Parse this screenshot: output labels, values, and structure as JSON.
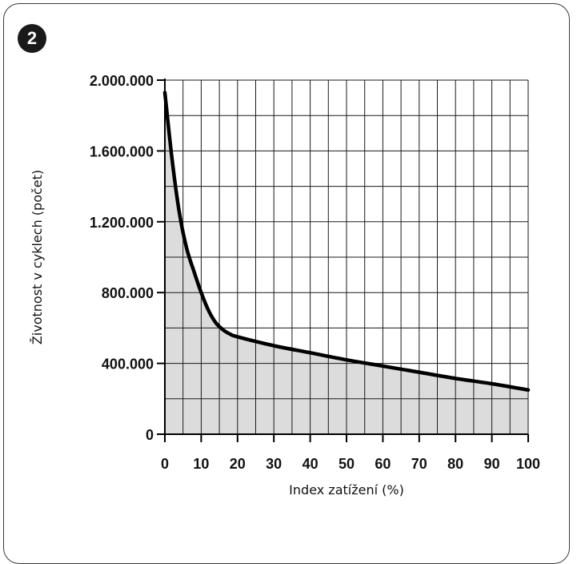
{
  "figure": {
    "badge": "2"
  },
  "chart_data": {
    "type": "area",
    "xlabel": "Index zatížení (%)",
    "ylabel": "Životnost v cyklech (počet)",
    "xlim": [
      0,
      100
    ],
    "ylim": [
      0,
      2000000
    ],
    "x_ticks": [
      0,
      10,
      20,
      30,
      40,
      50,
      60,
      70,
      80,
      90,
      100
    ],
    "x_tick_labels": [
      "0",
      "10",
      "20",
      "30",
      "40",
      "50",
      "60",
      "70",
      "80",
      "90",
      "100"
    ],
    "y_ticks": [
      0,
      400000,
      800000,
      1200000,
      1600000,
      2000000
    ],
    "y_tick_labels": [
      "0",
      "400.000",
      "800.000",
      "1.200.000",
      "1.600.000",
      "2.000.000"
    ],
    "grid": true,
    "series": [
      {
        "x": [
          0,
          2,
          4,
          6,
          8,
          10,
          12,
          14,
          16,
          18,
          20,
          30,
          40,
          50,
          60,
          70,
          80,
          90,
          100
        ],
        "y": [
          1930000,
          1550000,
          1250000,
          1050000,
          920000,
          800000,
          700000,
          630000,
          590000,
          565000,
          550000,
          500000,
          460000,
          420000,
          385000,
          350000,
          315000,
          285000,
          250000
        ]
      }
    ],
    "colors": {
      "line": "#000000",
      "fill": "#dcdcdc",
      "grid": "#1a1a1a"
    }
  }
}
